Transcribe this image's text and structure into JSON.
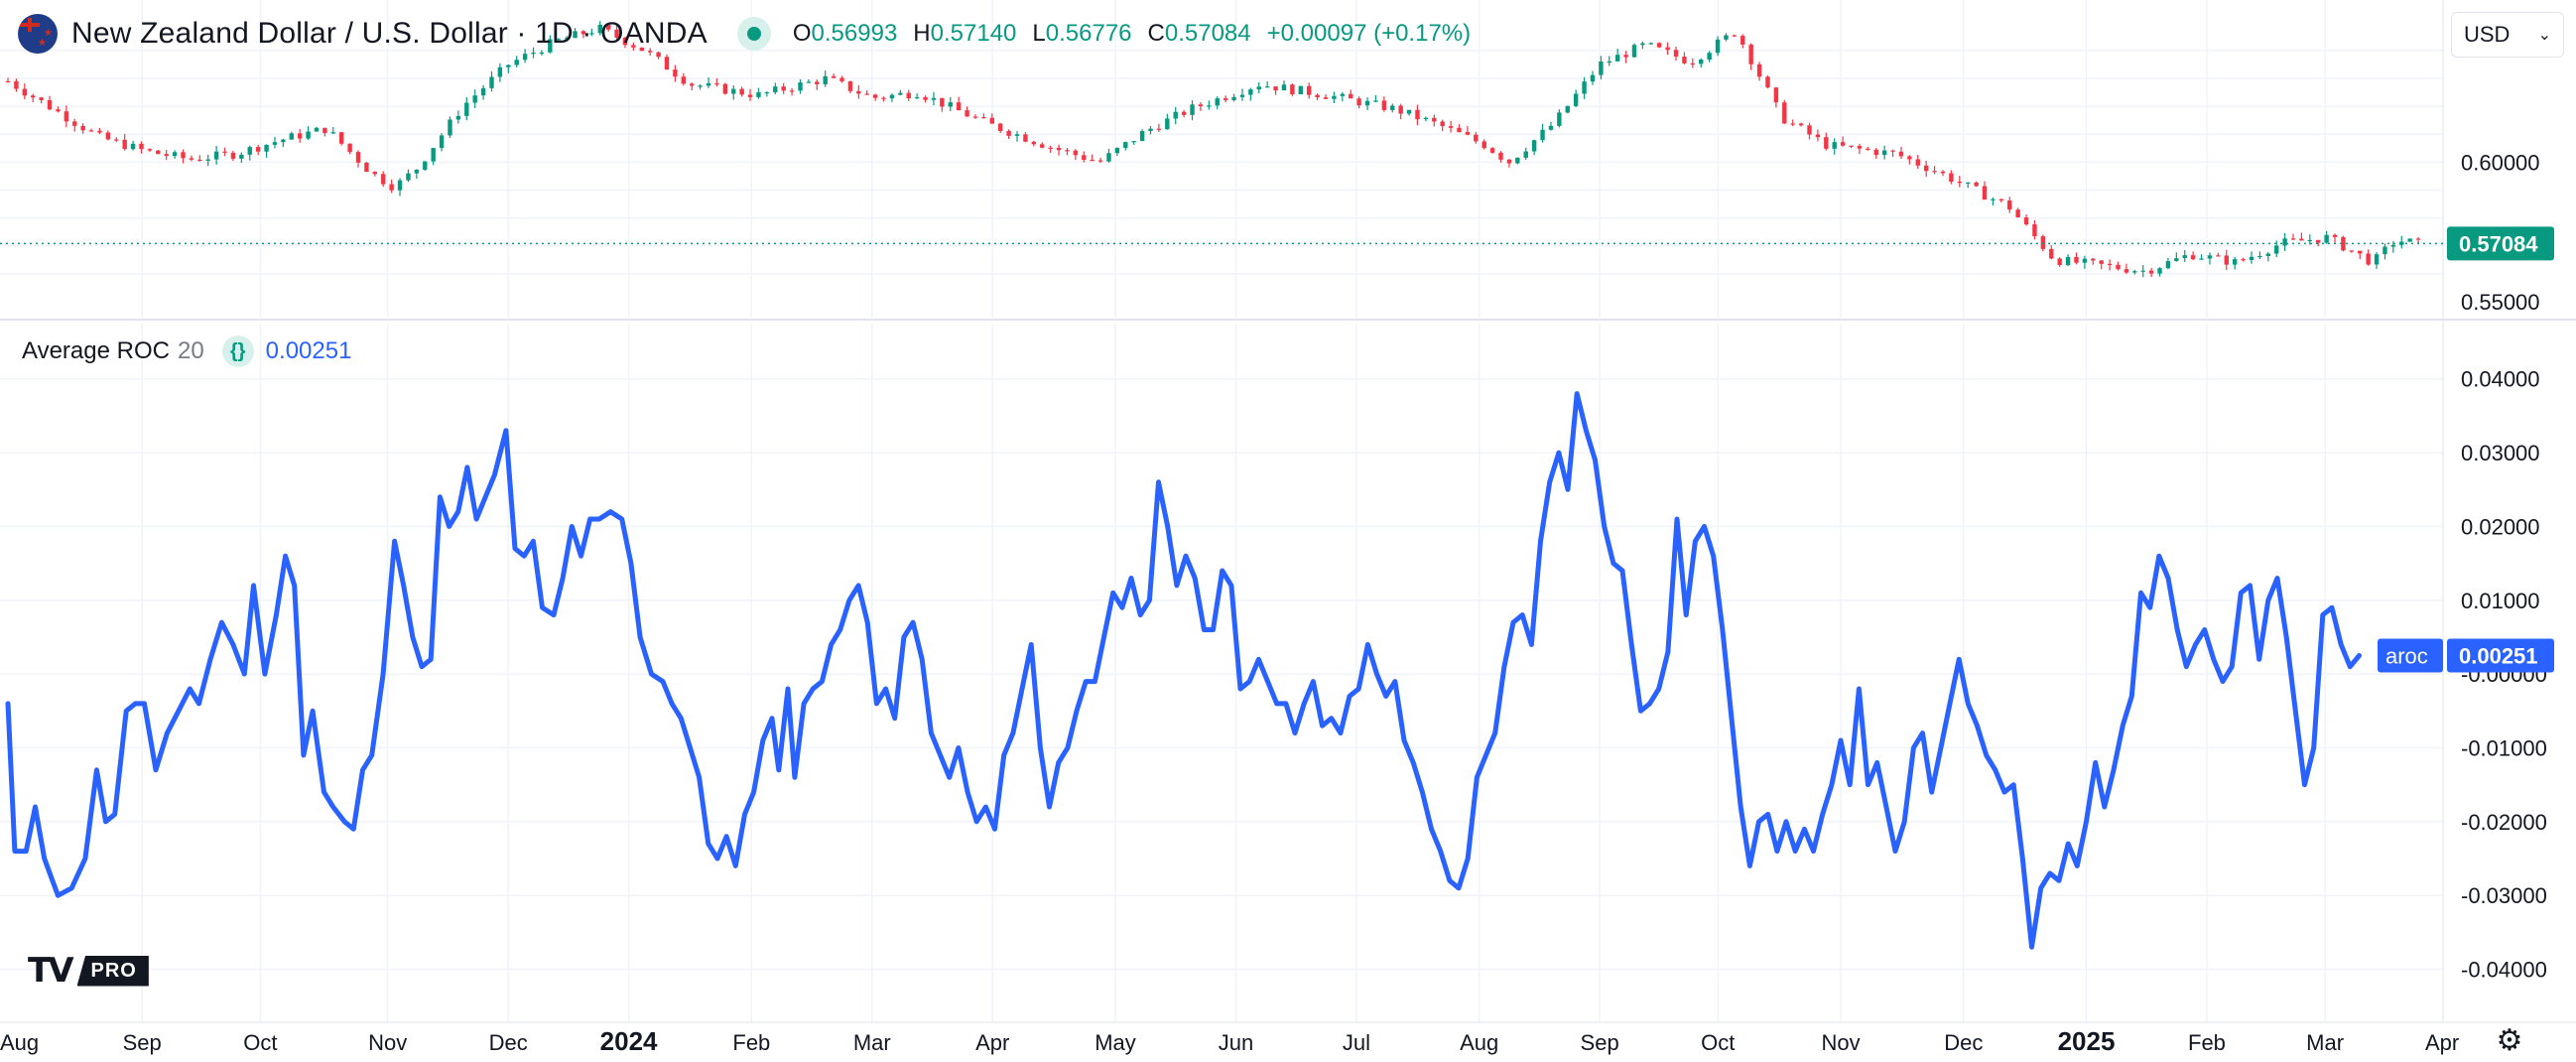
{
  "header": {
    "symbol_title": "New Zealand Dollar / U.S. Dollar · 1D · OANDA",
    "ohlc": [
      {
        "key": "O",
        "value": "0.56993"
      },
      {
        "key": "H",
        "value": "0.57140"
      },
      {
        "key": "L",
        "value": "0.56776"
      },
      {
        "key": "C",
        "value": "0.57084"
      }
    ],
    "change": "+0.00097 (+0.17%)",
    "currency": "USD"
  },
  "indicator": {
    "name": "Average ROC",
    "length": "20",
    "icon": "{}",
    "value": "0.00251",
    "badge_name": "aroc"
  },
  "branding": {
    "logo_mark": "TV",
    "logo_badge": "PRO"
  },
  "colors": {
    "up": "#089981",
    "down": "#f23645",
    "line": "#2962ff",
    "grid": "#f0f3fa",
    "text": "#131722"
  },
  "chart_data": [
    {
      "type": "candlestick",
      "title": "New Zealand Dollar / U.S. Dollar · 1D · OANDA",
      "ylim": [
        0.545,
        0.651
      ],
      "ytick_labels": [
        "0.60000",
        "0.55000"
      ],
      "yticks": [
        0.6,
        0.55
      ],
      "last_price_label": "0.57084",
      "last_price": 0.57084,
      "xlim": [
        0,
        107
      ],
      "path_points": [
        [
          0,
          0.629
        ],
        [
          2,
          0.619
        ],
        [
          4,
          0.609
        ],
        [
          6,
          0.604
        ],
        [
          8,
          0.601
        ],
        [
          10,
          0.603
        ],
        [
          12,
          0.608
        ],
        [
          14,
          0.612
        ],
        [
          16,
          0.596
        ],
        [
          17,
          0.591
        ],
        [
          18,
          0.598
        ],
        [
          20,
          0.62
        ],
        [
          22,
          0.635
        ],
        [
          24,
          0.643
        ],
        [
          26,
          0.648
        ],
        [
          28,
          0.64
        ],
        [
          30,
          0.628
        ],
        [
          33,
          0.624
        ],
        [
          36,
          0.63
        ],
        [
          38,
          0.623
        ],
        [
          40,
          0.625
        ],
        [
          43,
          0.614
        ],
        [
          46,
          0.605
        ],
        [
          48,
          0.6
        ],
        [
          50,
          0.611
        ],
        [
          52,
          0.619
        ],
        [
          55,
          0.628
        ],
        [
          58,
          0.624
        ],
        [
          61,
          0.619
        ],
        [
          63,
          0.613
        ],
        [
          65,
          0.606
        ],
        [
          66,
          0.6
        ],
        [
          68,
          0.614
        ],
        [
          70,
          0.635
        ],
        [
          72,
          0.642
        ],
        [
          74,
          0.636
        ],
        [
          76,
          0.647
        ],
        [
          78,
          0.616
        ],
        [
          80,
          0.606
        ],
        [
          83,
          0.603
        ],
        [
          85,
          0.596
        ],
        [
          88,
          0.584
        ],
        [
          90,
          0.565
        ],
        [
          92,
          0.563
        ],
        [
          94,
          0.561
        ],
        [
          96,
          0.567
        ],
        [
          98,
          0.564
        ],
        [
          100,
          0.571
        ],
        [
          102,
          0.573
        ],
        [
          104,
          0.564
        ],
        [
          105,
          0.572
        ],
        [
          106,
          0.571
        ]
      ]
    },
    {
      "type": "line",
      "title": "Average ROC 20",
      "series": [
        {
          "name": "aroc"
        }
      ],
      "ylim": [
        -0.0445,
        0.0405
      ],
      "ytick_labels": [
        "0.04000",
        "0.03000",
        "0.02000",
        "0.01000",
        "-0.00000",
        "-0.01000",
        "-0.02000",
        "-0.03000",
        "-0.04000"
      ],
      "yticks": [
        0.04,
        0.03,
        0.02,
        0.01,
        0.0,
        -0.01,
        -0.02,
        -0.03,
        -0.04
      ],
      "last_value_label": "0.00251",
      "last_value": 0.00251,
      "xlim": [
        0,
        107
      ],
      "x_categories": [
        "Sep",
        "Oct",
        "Nov",
        "Dec",
        "2024",
        "Feb",
        "Mar",
        "Apr",
        "May",
        "Jun",
        "Jul",
        "Aug",
        "Sep",
        "Oct",
        "Nov",
        "Dec",
        "2025",
        "Feb",
        "Mar"
      ],
      "x_category_positions": [
        5.9,
        11.1,
        16.7,
        22.0,
        27.3,
        32.7,
        38.0,
        43.3,
        48.7,
        54.0,
        59.3,
        64.7,
        70.0,
        75.2,
        80.6,
        86.0,
        91.4,
        96.7,
        101.9
      ],
      "x_edge_labels": {
        "left": "Aug",
        "right": "Apr"
      },
      "values": [
        [
          0,
          -0.004
        ],
        [
          0.3,
          -0.024
        ],
        [
          0.8,
          -0.024
        ],
        [
          1.2,
          -0.018
        ],
        [
          1.6,
          -0.025
        ],
        [
          2.2,
          -0.03
        ],
        [
          2.8,
          -0.029
        ],
        [
          3.4,
          -0.025
        ],
        [
          3.9,
          -0.013
        ],
        [
          4.3,
          -0.02
        ],
        [
          4.7,
          -0.019
        ],
        [
          5.2,
          -0.005
        ],
        [
          5.6,
          -0.004
        ],
        [
          6.0,
          -0.004
        ],
        [
          6.5,
          -0.013
        ],
        [
          7.0,
          -0.008
        ],
        [
          7.5,
          -0.005
        ],
        [
          8.0,
          -0.002
        ],
        [
          8.4,
          -0.004
        ],
        [
          8.9,
          0.002
        ],
        [
          9.4,
          0.007
        ],
        [
          9.9,
          0.004
        ],
        [
          10.4,
          0.0
        ],
        [
          10.8,
          0.012
        ],
        [
          11.3,
          0.0
        ],
        [
          11.8,
          0.008
        ],
        [
          12.2,
          0.016
        ],
        [
          12.6,
          0.012
        ],
        [
          13.0,
          -0.011
        ],
        [
          13.4,
          -0.005
        ],
        [
          13.9,
          -0.016
        ],
        [
          14.3,
          -0.018
        ],
        [
          14.8,
          -0.02
        ],
        [
          15.2,
          -0.021
        ],
        [
          15.6,
          -0.013
        ],
        [
          16.0,
          -0.011
        ],
        [
          16.5,
          0.0
        ],
        [
          17.0,
          0.018
        ],
        [
          17.4,
          0.012
        ],
        [
          17.8,
          0.005
        ],
        [
          18.2,
          0.001
        ],
        [
          18.6,
          0.002
        ],
        [
          19.0,
          0.024
        ],
        [
          19.4,
          0.02
        ],
        [
          19.8,
          0.022
        ],
        [
          20.2,
          0.028
        ],
        [
          20.6,
          0.021
        ],
        [
          21.0,
          0.024
        ],
        [
          21.4,
          0.027
        ],
        [
          21.9,
          0.033
        ],
        [
          22.3,
          0.017
        ],
        [
          22.7,
          0.016
        ],
        [
          23.1,
          0.018
        ],
        [
          23.5,
          0.009
        ],
        [
          24.0,
          0.008
        ],
        [
          24.4,
          0.013
        ],
        [
          24.8,
          0.02
        ],
        [
          25.2,
          0.016
        ],
        [
          25.6,
          0.021
        ],
        [
          26.0,
          0.021
        ],
        [
          26.5,
          0.022
        ],
        [
          27.0,
          0.021
        ],
        [
          27.4,
          0.015
        ],
        [
          27.8,
          0.005
        ],
        [
          28.3,
          0.0
        ],
        [
          28.8,
          -0.001
        ],
        [
          29.2,
          -0.004
        ],
        [
          29.6,
          -0.006
        ],
        [
          30.0,
          -0.01
        ],
        [
          30.4,
          -0.014
        ],
        [
          30.8,
          -0.023
        ],
        [
          31.2,
          -0.025
        ],
        [
          31.6,
          -0.022
        ],
        [
          32.0,
          -0.026
        ],
        [
          32.4,
          -0.019
        ],
        [
          32.8,
          -0.016
        ],
        [
          33.2,
          -0.009
        ],
        [
          33.6,
          -0.006
        ],
        [
          33.9,
          -0.013
        ],
        [
          34.3,
          -0.002
        ],
        [
          34.6,
          -0.014
        ],
        [
          35.0,
          -0.004
        ],
        [
          35.4,
          -0.002
        ],
        [
          35.8,
          -0.001
        ],
        [
          36.2,
          0.004
        ],
        [
          36.6,
          0.006
        ],
        [
          37.0,
          0.01
        ],
        [
          37.4,
          0.012
        ],
        [
          37.8,
          0.007
        ],
        [
          38.2,
          -0.004
        ],
        [
          38.6,
          -0.002
        ],
        [
          39.0,
          -0.006
        ],
        [
          39.4,
          0.005
        ],
        [
          39.8,
          0.007
        ],
        [
          40.2,
          0.002
        ],
        [
          40.6,
          -0.008
        ],
        [
          41.0,
          -0.011
        ],
        [
          41.4,
          -0.014
        ],
        [
          41.8,
          -0.01
        ],
        [
          42.2,
          -0.016
        ],
        [
          42.6,
          -0.02
        ],
        [
          43.0,
          -0.018
        ],
        [
          43.4,
          -0.021
        ],
        [
          43.8,
          -0.011
        ],
        [
          44.2,
          -0.008
        ],
        [
          44.6,
          -0.002
        ],
        [
          45.0,
          0.004
        ],
        [
          45.4,
          -0.01
        ],
        [
          45.8,
          -0.018
        ],
        [
          46.2,
          -0.012
        ],
        [
          46.6,
          -0.01
        ],
        [
          47.0,
          -0.005
        ],
        [
          47.4,
          -0.001
        ],
        [
          47.8,
          -0.001
        ],
        [
          48.2,
          0.005
        ],
        [
          48.6,
          0.011
        ],
        [
          49.0,
          0.009
        ],
        [
          49.4,
          0.013
        ],
        [
          49.8,
          0.008
        ],
        [
          50.2,
          0.01
        ],
        [
          50.6,
          0.026
        ],
        [
          51.0,
          0.02
        ],
        [
          51.4,
          0.012
        ],
        [
          51.8,
          0.016
        ],
        [
          52.2,
          0.013
        ],
        [
          52.6,
          0.006
        ],
        [
          53.0,
          0.006
        ],
        [
          53.4,
          0.014
        ],
        [
          53.8,
          0.012
        ],
        [
          54.2,
          -0.002
        ],
        [
          54.6,
          -0.001
        ],
        [
          55.0,
          0.002
        ],
        [
          55.4,
          -0.001
        ],
        [
          55.8,
          -0.004
        ],
        [
          56.2,
          -0.004
        ],
        [
          56.6,
          -0.008
        ],
        [
          57.0,
          -0.004
        ],
        [
          57.4,
          -0.001
        ],
        [
          57.8,
          -0.007
        ],
        [
          58.2,
          -0.006
        ],
        [
          58.6,
          -0.008
        ],
        [
          59.0,
          -0.003
        ],
        [
          59.4,
          -0.002
        ],
        [
          59.8,
          0.004
        ],
        [
          60.2,
          0.0
        ],
        [
          60.6,
          -0.003
        ],
        [
          61.0,
          -0.001
        ],
        [
          61.4,
          -0.009
        ],
        [
          61.8,
          -0.012
        ],
        [
          62.2,
          -0.016
        ],
        [
          62.6,
          -0.021
        ],
        [
          63.0,
          -0.024
        ],
        [
          63.4,
          -0.028
        ],
        [
          63.8,
          -0.029
        ],
        [
          64.2,
          -0.025
        ],
        [
          64.6,
          -0.014
        ],
        [
          65.0,
          -0.011
        ],
        [
          65.4,
          -0.008
        ],
        [
          65.8,
          0.001
        ],
        [
          66.2,
          0.007
        ],
        [
          66.6,
          0.008
        ],
        [
          67.0,
          0.004
        ],
        [
          67.4,
          0.018
        ],
        [
          67.8,
          0.026
        ],
        [
          68.2,
          0.03
        ],
        [
          68.6,
          0.025
        ],
        [
          69.0,
          0.038
        ],
        [
          69.4,
          0.033
        ],
        [
          69.8,
          0.029
        ],
        [
          70.2,
          0.02
        ],
        [
          70.6,
          0.015
        ],
        [
          71.0,
          0.014
        ],
        [
          71.4,
          0.004
        ],
        [
          71.8,
          -0.005
        ],
        [
          72.2,
          -0.004
        ],
        [
          72.6,
          -0.002
        ],
        [
          73.0,
          0.003
        ],
        [
          73.4,
          0.021
        ],
        [
          73.8,
          0.008
        ],
        [
          74.2,
          0.018
        ],
        [
          74.6,
          0.02
        ],
        [
          75.0,
          0.016
        ],
        [
          75.4,
          0.006
        ],
        [
          75.8,
          -0.006
        ],
        [
          76.2,
          -0.018
        ],
        [
          76.6,
          -0.026
        ],
        [
          77.0,
          -0.02
        ],
        [
          77.4,
          -0.019
        ],
        [
          77.8,
          -0.024
        ],
        [
          78.2,
          -0.02
        ],
        [
          78.6,
          -0.024
        ],
        [
          79.0,
          -0.021
        ],
        [
          79.4,
          -0.024
        ],
        [
          79.8,
          -0.019
        ],
        [
          80.2,
          -0.015
        ],
        [
          80.6,
          -0.009
        ],
        [
          81.0,
          -0.015
        ],
        [
          81.4,
          -0.002
        ],
        [
          81.8,
          -0.015
        ],
        [
          82.2,
          -0.012
        ],
        [
          82.6,
          -0.018
        ],
        [
          83.0,
          -0.024
        ],
        [
          83.4,
          -0.02
        ],
        [
          83.8,
          -0.01
        ],
        [
          84.2,
          -0.008
        ],
        [
          84.6,
          -0.016
        ],
        [
          85.0,
          -0.01
        ],
        [
          85.4,
          -0.004
        ],
        [
          85.8,
          0.002
        ],
        [
          86.2,
          -0.004
        ],
        [
          86.6,
          -0.007
        ],
        [
          87.0,
          -0.011
        ],
        [
          87.4,
          -0.013
        ],
        [
          87.8,
          -0.016
        ],
        [
          88.2,
          -0.015
        ],
        [
          88.6,
          -0.025
        ],
        [
          89.0,
          -0.037
        ],
        [
          89.4,
          -0.029
        ],
        [
          89.8,
          -0.027
        ],
        [
          90.2,
          -0.028
        ],
        [
          90.6,
          -0.023
        ],
        [
          91.0,
          -0.026
        ],
        [
          91.4,
          -0.02
        ],
        [
          91.8,
          -0.012
        ],
        [
          92.2,
          -0.018
        ],
        [
          92.6,
          -0.013
        ],
        [
          93.0,
          -0.007
        ],
        [
          93.4,
          -0.003
        ],
        [
          93.8,
          0.011
        ],
        [
          94.2,
          0.009
        ],
        [
          94.6,
          0.016
        ],
        [
          95.0,
          0.013
        ],
        [
          95.4,
          0.006
        ],
        [
          95.8,
          0.001
        ],
        [
          96.2,
          0.004
        ],
        [
          96.6,
          0.006
        ],
        [
          97.0,
          0.002
        ],
        [
          97.4,
          -0.001
        ],
        [
          97.8,
          0.001
        ],
        [
          98.2,
          0.011
        ],
        [
          98.6,
          0.012
        ],
        [
          99.0,
          0.002
        ],
        [
          99.4,
          0.01
        ],
        [
          99.8,
          0.013
        ],
        [
          100.2,
          0.005
        ],
        [
          100.6,
          -0.005
        ],
        [
          101.0,
          -0.015
        ],
        [
          101.4,
          -0.01
        ],
        [
          101.8,
          0.008
        ],
        [
          102.2,
          0.009
        ],
        [
          102.6,
          0.004
        ],
        [
          103.0,
          0.001
        ],
        [
          103.4,
          0.0025
        ]
      ]
    }
  ]
}
